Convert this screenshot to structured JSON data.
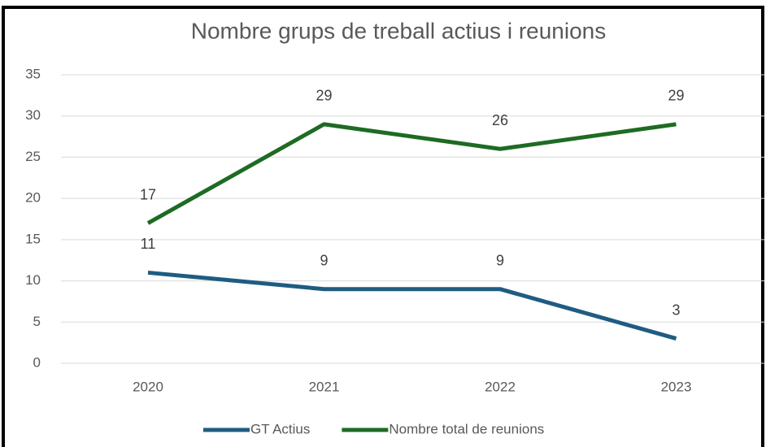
{
  "chart_data": {
    "type": "line",
    "title": "Nombre grups de treball actius i reunions",
    "categories": [
      "2020",
      "2021",
      "2022",
      "2023"
    ],
    "series": [
      {
        "name": "GT Actius",
        "color": "#1f5c82",
        "values": [
          11,
          9,
          9,
          3
        ]
      },
      {
        "name": "Nombre total de reunions",
        "color": "#1e6b24",
        "values": [
          17,
          29,
          26,
          29
        ]
      }
    ],
    "ylim": [
      0,
      35
    ],
    "yticks": [
      0,
      5,
      10,
      15,
      20,
      25,
      30,
      35
    ],
    "grid": true,
    "legend": "bottom"
  }
}
